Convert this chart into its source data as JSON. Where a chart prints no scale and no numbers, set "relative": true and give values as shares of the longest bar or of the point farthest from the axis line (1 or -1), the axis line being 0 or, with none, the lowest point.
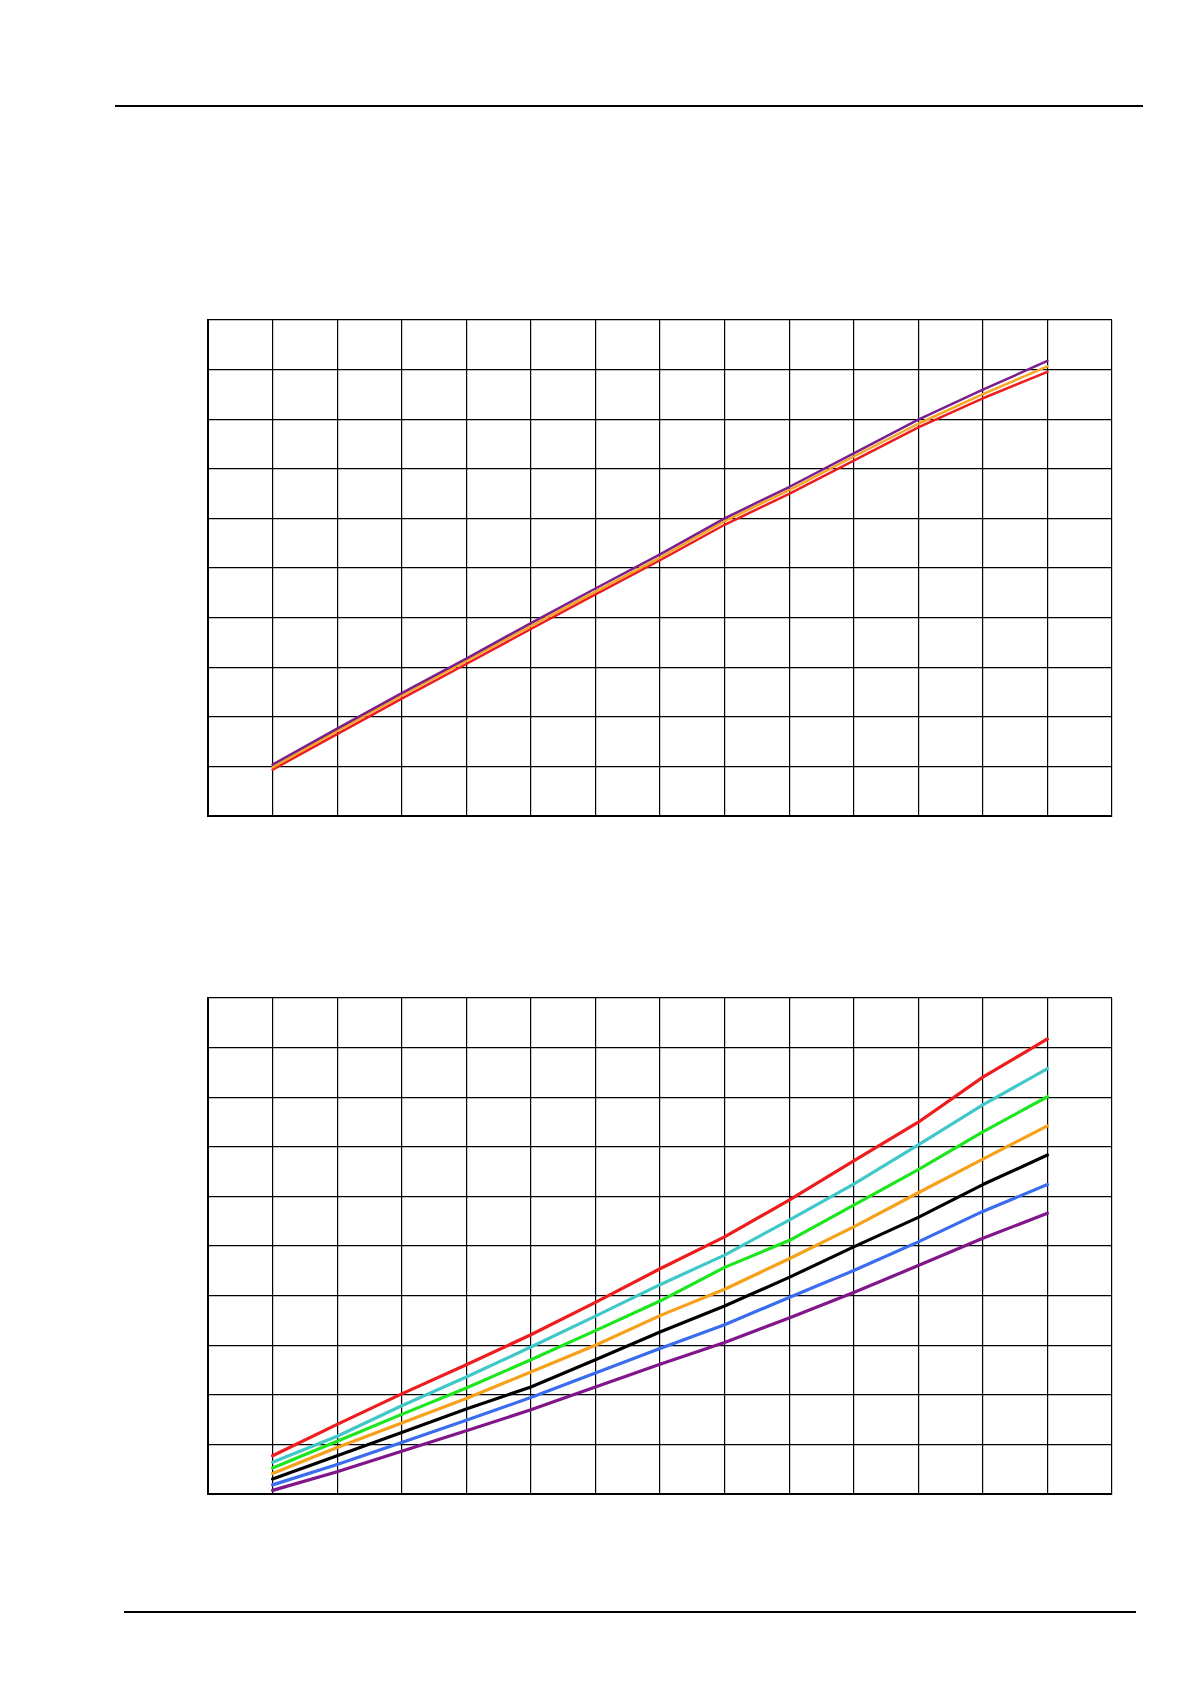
{
  "chart_data": [
    {
      "type": "line",
      "relative": true,
      "grid": true,
      "legend": false,
      "categories": [
        null,
        null,
        null,
        null,
        null,
        null,
        null,
        null,
        null,
        null,
        null,
        null,
        null
      ],
      "series": [
        {
          "color": "#7b1e8c",
          "values": [
            0.113,
            0.192,
            0.27,
            0.346,
            0.424,
            0.5,
            0.575,
            0.654,
            0.723,
            0.797,
            0.871,
            0.937,
            1
          ]
        },
        {
          "color": "#f5a623",
          "values": [
            0.107,
            0.187,
            0.265,
            0.341,
            0.418,
            0.493,
            0.568,
            0.648,
            0.716,
            0.79,
            0.862,
            0.927,
            0.988
          ]
        },
        {
          "color": "#ee1c1c",
          "values": [
            0.102,
            0.18,
            0.258,
            0.334,
            0.411,
            0.487,
            0.562,
            0.64,
            0.708,
            0.781,
            0.854,
            0.918,
            0.976
          ]
        }
      ]
    },
    {
      "type": "line",
      "relative": true,
      "grid": true,
      "legend": false,
      "categories": [
        null,
        null,
        null,
        null,
        null,
        null,
        null,
        null,
        null,
        null,
        null,
        null,
        null
      ],
      "series": [
        {
          "color": "#ee1c1c",
          "values": [
            0.084,
            0.153,
            0.22,
            0.284,
            0.35,
            0.421,
            0.495,
            0.565,
            0.646,
            0.732,
            0.817,
            0.916,
            1
          ]
        },
        {
          "color": "#40c8c8",
          "values": [
            0.07,
            0.127,
            0.194,
            0.257,
            0.323,
            0.391,
            0.46,
            0.525,
            0.602,
            0.681,
            0.767,
            0.855,
            0.935
          ]
        },
        {
          "color": "#1ee61e",
          "values": [
            0.057,
            0.116,
            0.175,
            0.233,
            0.295,
            0.359,
            0.424,
            0.498,
            0.557,
            0.635,
            0.713,
            0.796,
            0.873
          ]
        },
        {
          "color": "#f7a01a",
          "values": [
            0.045,
            0.102,
            0.156,
            0.21,
            0.268,
            0.327,
            0.392,
            0.45,
            0.517,
            0.587,
            0.662,
            0.736,
            0.809
          ]
        },
        {
          "color": "#000000",
          "values": [
            0.033,
            0.084,
            0.135,
            0.187,
            0.235,
            0.295,
            0.356,
            0.413,
            0.476,
            0.543,
            0.608,
            0.68,
            0.745
          ]
        },
        {
          "color": "#3a6cf0",
          "values": [
            0.02,
            0.065,
            0.113,
            0.162,
            0.212,
            0.266,
            0.32,
            0.372,
            0.432,
            0.491,
            0.554,
            0.621,
            0.68
          ]
        },
        {
          "color": "#80168a",
          "values": [
            0.008,
            0.049,
            0.094,
            0.139,
            0.185,
            0.235,
            0.285,
            0.333,
            0.387,
            0.443,
            0.502,
            0.562,
            0.617
          ]
        }
      ]
    }
  ]
}
